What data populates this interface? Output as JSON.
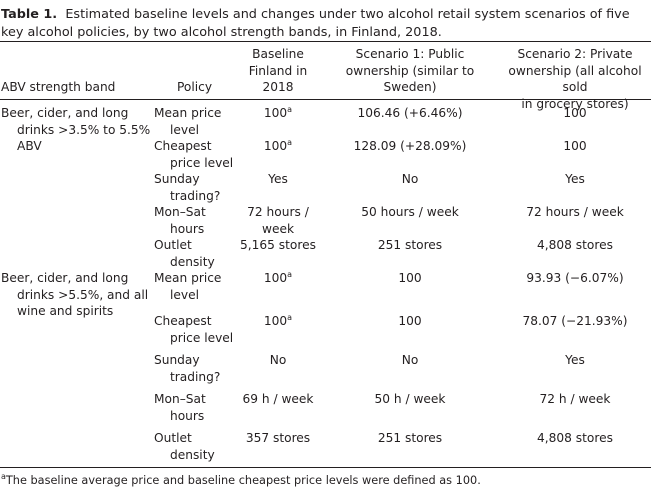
{
  "caption": {
    "label": "Table 1.",
    "text": "Estimated baseline levels and changes under two alcohol retail system scenarios of five key alcohol policies, by two alcohol strength bands, in Finland, 2018."
  },
  "headers": {
    "abv": "ABV strength band",
    "policy": "Policy",
    "baseline": [
      "Baseline",
      "Finland in",
      "2018"
    ],
    "s1": [
      "Scenario 1: Public",
      "ownership (similar to",
      "Sweden)"
    ],
    "s2": [
      "Scenario 2: Private",
      "ownership (all alcohol sold",
      "in grocery stores)"
    ]
  },
  "groups": [
    {
      "band": [
        "Beer, cider, and long",
        "drinks >3.5% to 5.5%",
        "ABV"
      ],
      "rows": [
        {
          "policy": [
            "Mean price",
            "level"
          ],
          "baseline": "100",
          "baseline_sup": "a",
          "s1": "106.46 (+6.46%)",
          "s2": "100"
        },
        {
          "policy": [
            "Cheapest",
            "price level"
          ],
          "baseline": "100",
          "baseline_sup": "a",
          "s1": "128.09 (+28.09%)",
          "s2": "100"
        },
        {
          "policy": [
            "Sunday",
            "trading?"
          ],
          "baseline": "Yes",
          "s1": "No",
          "s2": "Yes"
        },
        {
          "policy": [
            "Mon–Sat",
            "hours"
          ],
          "baseline": [
            "72 hours /",
            "week"
          ],
          "s1": "50 hours / week",
          "s2": "72 hours / week"
        },
        {
          "policy": [
            "Outlet",
            "density"
          ],
          "baseline": "5,165 stores",
          "s1": "251 stores",
          "s2": "4,808 stores"
        }
      ]
    },
    {
      "band": [
        "Beer, cider, and long",
        "drinks >5.5%, and all",
        "wine and spirits"
      ],
      "rows": [
        {
          "policy": [
            "Mean price",
            "level"
          ],
          "baseline": "100",
          "baseline_sup": "a",
          "s1": "100",
          "s2": "93.93 (−6.07%)"
        },
        {
          "policy": [
            "Cheapest",
            "price level"
          ],
          "baseline": "100",
          "baseline_sup": "a",
          "s1": "100",
          "s2": "78.07 (−21.93%)"
        },
        {
          "policy": [
            "Sunday",
            "trading?"
          ],
          "baseline": "No",
          "s1": "No",
          "s2": "Yes"
        },
        {
          "policy": [
            "Mon–Sat",
            "hours"
          ],
          "baseline": "69 h / week",
          "s1": "50 h / week",
          "s2": "72 h / week"
        },
        {
          "policy": [
            "Outlet",
            "density"
          ],
          "baseline": "357 stores",
          "s1": "251 stores",
          "s2": "4,808 stores"
        }
      ]
    }
  ],
  "footnote": {
    "mark": "a",
    "text": "The baseline average price and baseline cheapest price levels were defined as 100."
  }
}
